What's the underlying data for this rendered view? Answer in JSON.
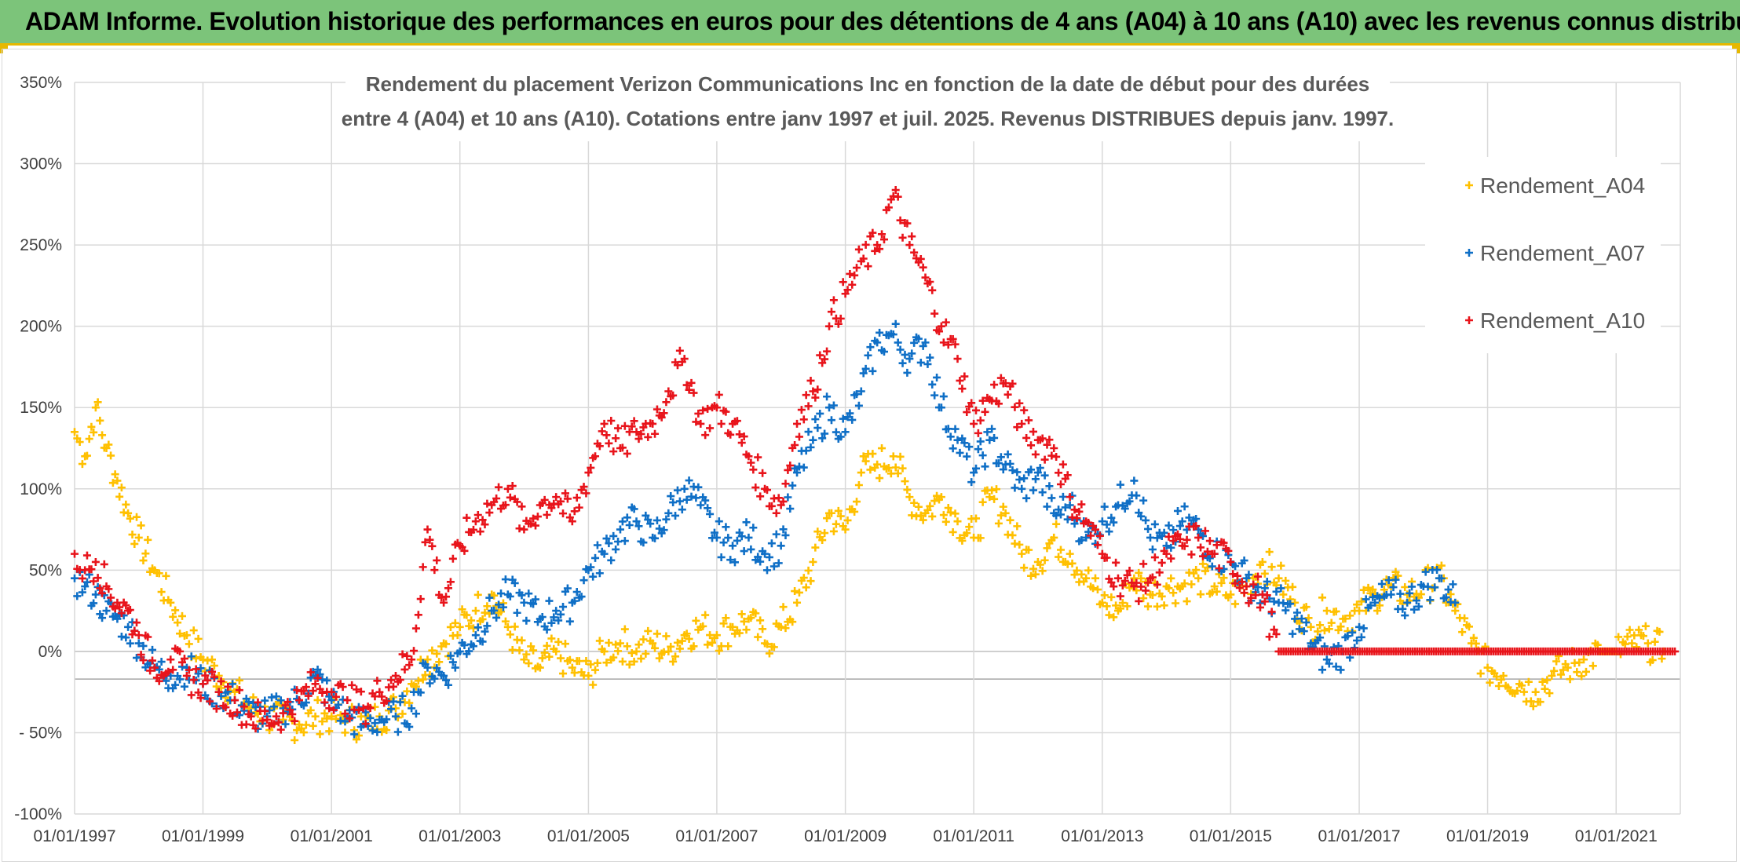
{
  "banner": {
    "title": "ADAM Informe. Evolution historique des performances en euros pour des détentions de 4 ans (A04) à 10 ans (A10) avec les revenus connus distribués"
  },
  "chart_data": {
    "type": "scatter",
    "title_line1": "Rendement du placement Verizon Communications Inc en fonction de la date de début pour des durées",
    "title_line2": "entre 4 (A04) et 10 ans (A10). Cotations entre janv 1997 et juil. 2025. Revenus DISTRIBUES depuis janv. 1997.",
    "xlabel": "",
    "ylabel": "",
    "x_ticks": [
      "01/01/1997",
      "01/01/1999",
      "01/01/2001",
      "01/01/2003",
      "01/01/2005",
      "01/01/2007",
      "01/01/2009",
      "01/01/2011",
      "01/01/2013",
      "01/01/2015",
      "01/01/2017",
      "01/01/2019",
      "01/01/2021"
    ],
    "y_ticks": [
      "350%",
      "300%",
      "250%",
      "200%",
      "150%",
      "100%",
      "50%",
      "0%",
      "- 50%",
      "-100%"
    ],
    "ylim": [
      -100,
      350
    ],
    "xlim": [
      "1997-01-01",
      "2022-01-01"
    ],
    "grid": true,
    "legend_position": "top-right",
    "series": [
      {
        "name": "Rendement_A04",
        "color": "#ffc000",
        "points": [
          [
            "1997-01-01",
            135
          ],
          [
            "1997-03-01",
            120
          ],
          [
            "1997-05-01",
            150
          ],
          [
            "1997-07-01",
            125
          ],
          [
            "1997-09-01",
            105
          ],
          [
            "1997-11-01",
            85
          ],
          [
            "1998-01-01",
            70
          ],
          [
            "1998-04-01",
            50
          ],
          [
            "1998-07-01",
            30
          ],
          [
            "1998-10-01",
            10
          ],
          [
            "1999-01-01",
            -5
          ],
          [
            "1999-04-01",
            -15
          ],
          [
            "1999-07-01",
            -25
          ],
          [
            "1999-10-01",
            -35
          ],
          [
            "2000-01-01",
            -40
          ],
          [
            "2000-04-01",
            -42
          ],
          [
            "2000-07-01",
            -45
          ],
          [
            "2000-10-01",
            -40
          ],
          [
            "2001-01-01",
            -40
          ],
          [
            "2001-04-01",
            -42
          ],
          [
            "2001-07-01",
            -45
          ],
          [
            "2001-10-01",
            -40
          ],
          [
            "2002-01-01",
            -35
          ],
          [
            "2002-04-01",
            -20
          ],
          [
            "2002-07-01",
            -5
          ],
          [
            "2002-10-01",
            5
          ],
          [
            "2003-01-01",
            15
          ],
          [
            "2003-04-01",
            25
          ],
          [
            "2003-07-01",
            35
          ],
          [
            "2003-10-01",
            15
          ],
          [
            "2004-01-01",
            -5
          ],
          [
            "2004-04-01",
            -10
          ],
          [
            "2004-07-01",
            0
          ],
          [
            "2004-10-01",
            -10
          ],
          [
            "2005-01-01",
            -15
          ],
          [
            "2005-04-01",
            0
          ],
          [
            "2005-07-01",
            5
          ],
          [
            "2005-10-01",
            0
          ],
          [
            "2006-01-01",
            5
          ],
          [
            "2006-04-01",
            0
          ],
          [
            "2006-07-01",
            10
          ],
          [
            "2006-10-01",
            15
          ],
          [
            "2007-01-01",
            10
          ],
          [
            "2007-04-01",
            15
          ],
          [
            "2007-07-01",
            20
          ],
          [
            "2007-10-01",
            5
          ],
          [
            "2008-01-01",
            15
          ],
          [
            "2008-04-01",
            30
          ],
          [
            "2008-07-01",
            55
          ],
          [
            "2008-10-01",
            85
          ],
          [
            "2009-01-01",
            75
          ],
          [
            "2009-04-01",
            110
          ],
          [
            "2009-07-01",
            115
          ],
          [
            "2009-10-01",
            120
          ],
          [
            "2010-01-01",
            95
          ],
          [
            "2010-04-01",
            85
          ],
          [
            "2010-07-01",
            95
          ],
          [
            "2010-10-01",
            80
          ],
          [
            "2011-01-01",
            70
          ],
          [
            "2011-04-01",
            95
          ],
          [
            "2011-07-01",
            85
          ],
          [
            "2011-10-01",
            60
          ],
          [
            "2012-01-01",
            55
          ],
          [
            "2012-04-01",
            70
          ],
          [
            "2012-07-01",
            60
          ],
          [
            "2012-10-01",
            45
          ],
          [
            "2013-01-01",
            30
          ],
          [
            "2013-04-01",
            25
          ],
          [
            "2013-07-01",
            45
          ],
          [
            "2013-10-01",
            35
          ],
          [
            "2014-01-01",
            40
          ],
          [
            "2014-04-01",
            40
          ],
          [
            "2014-07-01",
            45
          ],
          [
            "2014-10-01",
            40
          ],
          [
            "2015-01-01",
            35
          ],
          [
            "2015-04-01",
            40
          ],
          [
            "2015-07-01",
            55
          ],
          [
            "2015-10-01",
            45
          ],
          [
            "2016-01-01",
            30
          ],
          [
            "2016-04-01",
            15
          ],
          [
            "2016-07-01",
            25
          ],
          [
            "2016-10-01",
            20
          ],
          [
            "2017-01-01",
            25
          ],
          [
            "2017-04-01",
            35
          ],
          [
            "2017-07-01",
            40
          ],
          [
            "2017-10-01",
            35
          ],
          [
            "2018-01-01",
            40
          ],
          [
            "2018-04-01",
            45
          ],
          [
            "2018-07-01",
            25
          ],
          [
            "2018-10-01",
            5
          ],
          [
            "2019-01-01",
            -10
          ],
          [
            "2019-04-01",
            -15
          ],
          [
            "2019-07-01",
            -20
          ],
          [
            "2019-10-01",
            -25
          ],
          [
            "2020-01-01",
            -15
          ],
          [
            "2020-04-01",
            -10
          ],
          [
            "2020-07-01",
            -5
          ],
          [
            "2020-10-01",
            0
          ],
          [
            "2021-01-01",
            0
          ],
          [
            "2021-04-01",
            5
          ],
          [
            "2021-07-01",
            5
          ],
          [
            "2021-10-01",
            0
          ]
        ]
      },
      {
        "name": "Rendement_A07",
        "color": "#0f6fc6",
        "points": [
          [
            "1997-01-01",
            45
          ],
          [
            "1997-03-01",
            40
          ],
          [
            "1997-05-01",
            35
          ],
          [
            "1997-07-01",
            25
          ],
          [
            "1997-09-01",
            20
          ],
          [
            "1997-11-01",
            15
          ],
          [
            "1998-01-01",
            5
          ],
          [
            "1998-04-01",
            -10
          ],
          [
            "1998-07-01",
            -15
          ],
          [
            "1998-10-01",
            -10
          ],
          [
            "1999-01-01",
            -20
          ],
          [
            "1999-04-01",
            -25
          ],
          [
            "1999-07-01",
            -30
          ],
          [
            "1999-10-01",
            -38
          ],
          [
            "2000-01-01",
            -40
          ],
          [
            "2000-04-01",
            -35
          ],
          [
            "2000-07-01",
            -30
          ],
          [
            "2000-10-01",
            -15
          ],
          [
            "2001-01-01",
            -30
          ],
          [
            "2001-04-01",
            -40
          ],
          [
            "2001-07-01",
            -45
          ],
          [
            "2001-10-01",
            -42
          ],
          [
            "2002-01-01",
            -40
          ],
          [
            "2002-04-01",
            -35
          ],
          [
            "2002-07-01",
            -10
          ],
          [
            "2002-10-01",
            -15
          ],
          [
            "2003-01-01",
            0
          ],
          [
            "2003-04-01",
            10
          ],
          [
            "2003-07-01",
            25
          ],
          [
            "2003-10-01",
            35
          ],
          [
            "2004-01-01",
            30
          ],
          [
            "2004-04-01",
            20
          ],
          [
            "2004-07-01",
            25
          ],
          [
            "2004-10-01",
            30
          ],
          [
            "2005-01-01",
            50
          ],
          [
            "2005-04-01",
            60
          ],
          [
            "2005-07-01",
            75
          ],
          [
            "2005-10-01",
            80
          ],
          [
            "2006-01-01",
            70
          ],
          [
            "2006-04-01",
            85
          ],
          [
            "2006-07-01",
            100
          ],
          [
            "2006-10-01",
            90
          ],
          [
            "2007-01-01",
            70
          ],
          [
            "2007-04-01",
            65
          ],
          [
            "2007-07-01",
            70
          ],
          [
            "2007-10-01",
            60
          ],
          [
            "2008-01-01",
            65
          ],
          [
            "2008-04-01",
            110
          ],
          [
            "2008-07-01",
            130
          ],
          [
            "2008-10-01",
            150
          ],
          [
            "2009-01-01",
            135
          ],
          [
            "2009-04-01",
            160
          ],
          [
            "2009-07-01",
            190
          ],
          [
            "2009-10-01",
            195
          ],
          [
            "2010-01-01",
            180
          ],
          [
            "2010-04-01",
            190
          ],
          [
            "2010-07-01",
            150
          ],
          [
            "2010-10-01",
            130
          ],
          [
            "2011-01-01",
            110
          ],
          [
            "2011-04-01",
            130
          ],
          [
            "2011-07-01",
            115
          ],
          [
            "2011-10-01",
            100
          ],
          [
            "2012-01-01",
            110
          ],
          [
            "2012-04-01",
            85
          ],
          [
            "2012-07-01",
            90
          ],
          [
            "2012-10-01",
            70
          ],
          [
            "2013-01-01",
            80
          ],
          [
            "2013-04-01",
            90
          ],
          [
            "2013-07-01",
            105
          ],
          [
            "2013-10-01",
            70
          ],
          [
            "2014-01-01",
            65
          ],
          [
            "2014-04-01",
            80
          ],
          [
            "2014-07-01",
            75
          ],
          [
            "2014-10-01",
            60
          ],
          [
            "2015-01-01",
            55
          ],
          [
            "2015-04-01",
            45
          ],
          [
            "2015-07-01",
            35
          ],
          [
            "2015-10-01",
            30
          ],
          [
            "2016-01-01",
            20
          ],
          [
            "2016-04-01",
            5
          ],
          [
            "2016-07-01",
            -5
          ],
          [
            "2016-10-01",
            0
          ],
          [
            "2017-01-01",
            15
          ],
          [
            "2017-04-01",
            30
          ],
          [
            "2017-07-01",
            35
          ],
          [
            "2017-10-01",
            30
          ],
          [
            "2018-01-01",
            40
          ],
          [
            "2018-04-01",
            45
          ],
          [
            "2018-07-01",
            30
          ]
        ]
      },
      {
        "name": "Rendement_A10",
        "color": "#e8141b",
        "points": [
          [
            "1997-01-01",
            60
          ],
          [
            "1997-03-01",
            50
          ],
          [
            "1997-05-01",
            55
          ],
          [
            "1997-07-01",
            40
          ],
          [
            "1997-09-01",
            30
          ],
          [
            "1997-11-01",
            25
          ],
          [
            "1998-01-01",
            10
          ],
          [
            "1998-04-01",
            -10
          ],
          [
            "1998-07-01",
            -5
          ],
          [
            "1998-10-01",
            -15
          ],
          [
            "1999-01-01",
            -20
          ],
          [
            "1999-04-01",
            -25
          ],
          [
            "1999-07-01",
            -30
          ],
          [
            "1999-10-01",
            -40
          ],
          [
            "2000-01-01",
            -42
          ],
          [
            "2000-04-01",
            -38
          ],
          [
            "2000-07-01",
            -30
          ],
          [
            "2000-10-01",
            -20
          ],
          [
            "2001-01-01",
            -25
          ],
          [
            "2001-04-01",
            -30
          ],
          [
            "2001-07-01",
            -35
          ],
          [
            "2001-10-01",
            -25
          ],
          [
            "2002-01-01",
            -15
          ],
          [
            "2002-04-01",
            -5
          ],
          [
            "2002-07-01",
            75
          ],
          [
            "2002-10-01",
            30
          ],
          [
            "2003-01-01",
            65
          ],
          [
            "2003-04-01",
            80
          ],
          [
            "2003-07-01",
            90
          ],
          [
            "2003-10-01",
            100
          ],
          [
            "2004-01-01",
            75
          ],
          [
            "2004-04-01",
            90
          ],
          [
            "2004-07-01",
            95
          ],
          [
            "2004-10-01",
            80
          ],
          [
            "2005-01-01",
            110
          ],
          [
            "2005-04-01",
            140
          ],
          [
            "2005-07-01",
            125
          ],
          [
            "2005-10-01",
            135
          ],
          [
            "2006-01-01",
            140
          ],
          [
            "2006-04-01",
            160
          ],
          [
            "2006-07-01",
            180
          ],
          [
            "2006-10-01",
            140
          ],
          [
            "2007-01-01",
            150
          ],
          [
            "2007-04-01",
            140
          ],
          [
            "2007-07-01",
            120
          ],
          [
            "2007-10-01",
            100
          ],
          [
            "2008-01-01",
            90
          ],
          [
            "2008-04-01",
            140
          ],
          [
            "2008-07-01",
            160
          ],
          [
            "2008-10-01",
            200
          ],
          [
            "2009-01-01",
            220
          ],
          [
            "2009-04-01",
            240
          ],
          [
            "2009-07-01",
            250
          ],
          [
            "2009-10-01",
            280
          ],
          [
            "2010-01-01",
            250
          ],
          [
            "2010-04-01",
            230
          ],
          [
            "2010-07-01",
            200
          ],
          [
            "2010-10-01",
            180
          ],
          [
            "2011-01-01",
            140
          ],
          [
            "2011-04-01",
            155
          ],
          [
            "2011-07-01",
            165
          ],
          [
            "2011-10-01",
            140
          ],
          [
            "2012-01-01",
            130
          ],
          [
            "2012-04-01",
            125
          ],
          [
            "2012-07-01",
            95
          ],
          [
            "2012-10-01",
            80
          ],
          [
            "2013-01-01",
            60
          ],
          [
            "2013-04-01",
            45
          ],
          [
            "2013-07-01",
            40
          ],
          [
            "2013-10-01",
            45
          ],
          [
            "2014-01-01",
            60
          ],
          [
            "2014-04-01",
            65
          ],
          [
            "2014-07-01",
            70
          ],
          [
            "2014-10-01",
            60
          ],
          [
            "2015-01-01",
            55
          ],
          [
            "2015-04-01",
            40
          ],
          [
            "2015-07-01",
            35
          ],
          [
            "2015-10-01",
            0
          ],
          [
            "2016-07-01",
            0
          ],
          [
            "2017-07-01",
            0
          ],
          [
            "2018-07-01",
            0
          ],
          [
            "2019-07-01",
            0
          ],
          [
            "2020-07-01",
            0
          ],
          [
            "2021-07-01",
            0
          ],
          [
            "2021-12-01",
            0
          ]
        ]
      }
    ]
  }
}
